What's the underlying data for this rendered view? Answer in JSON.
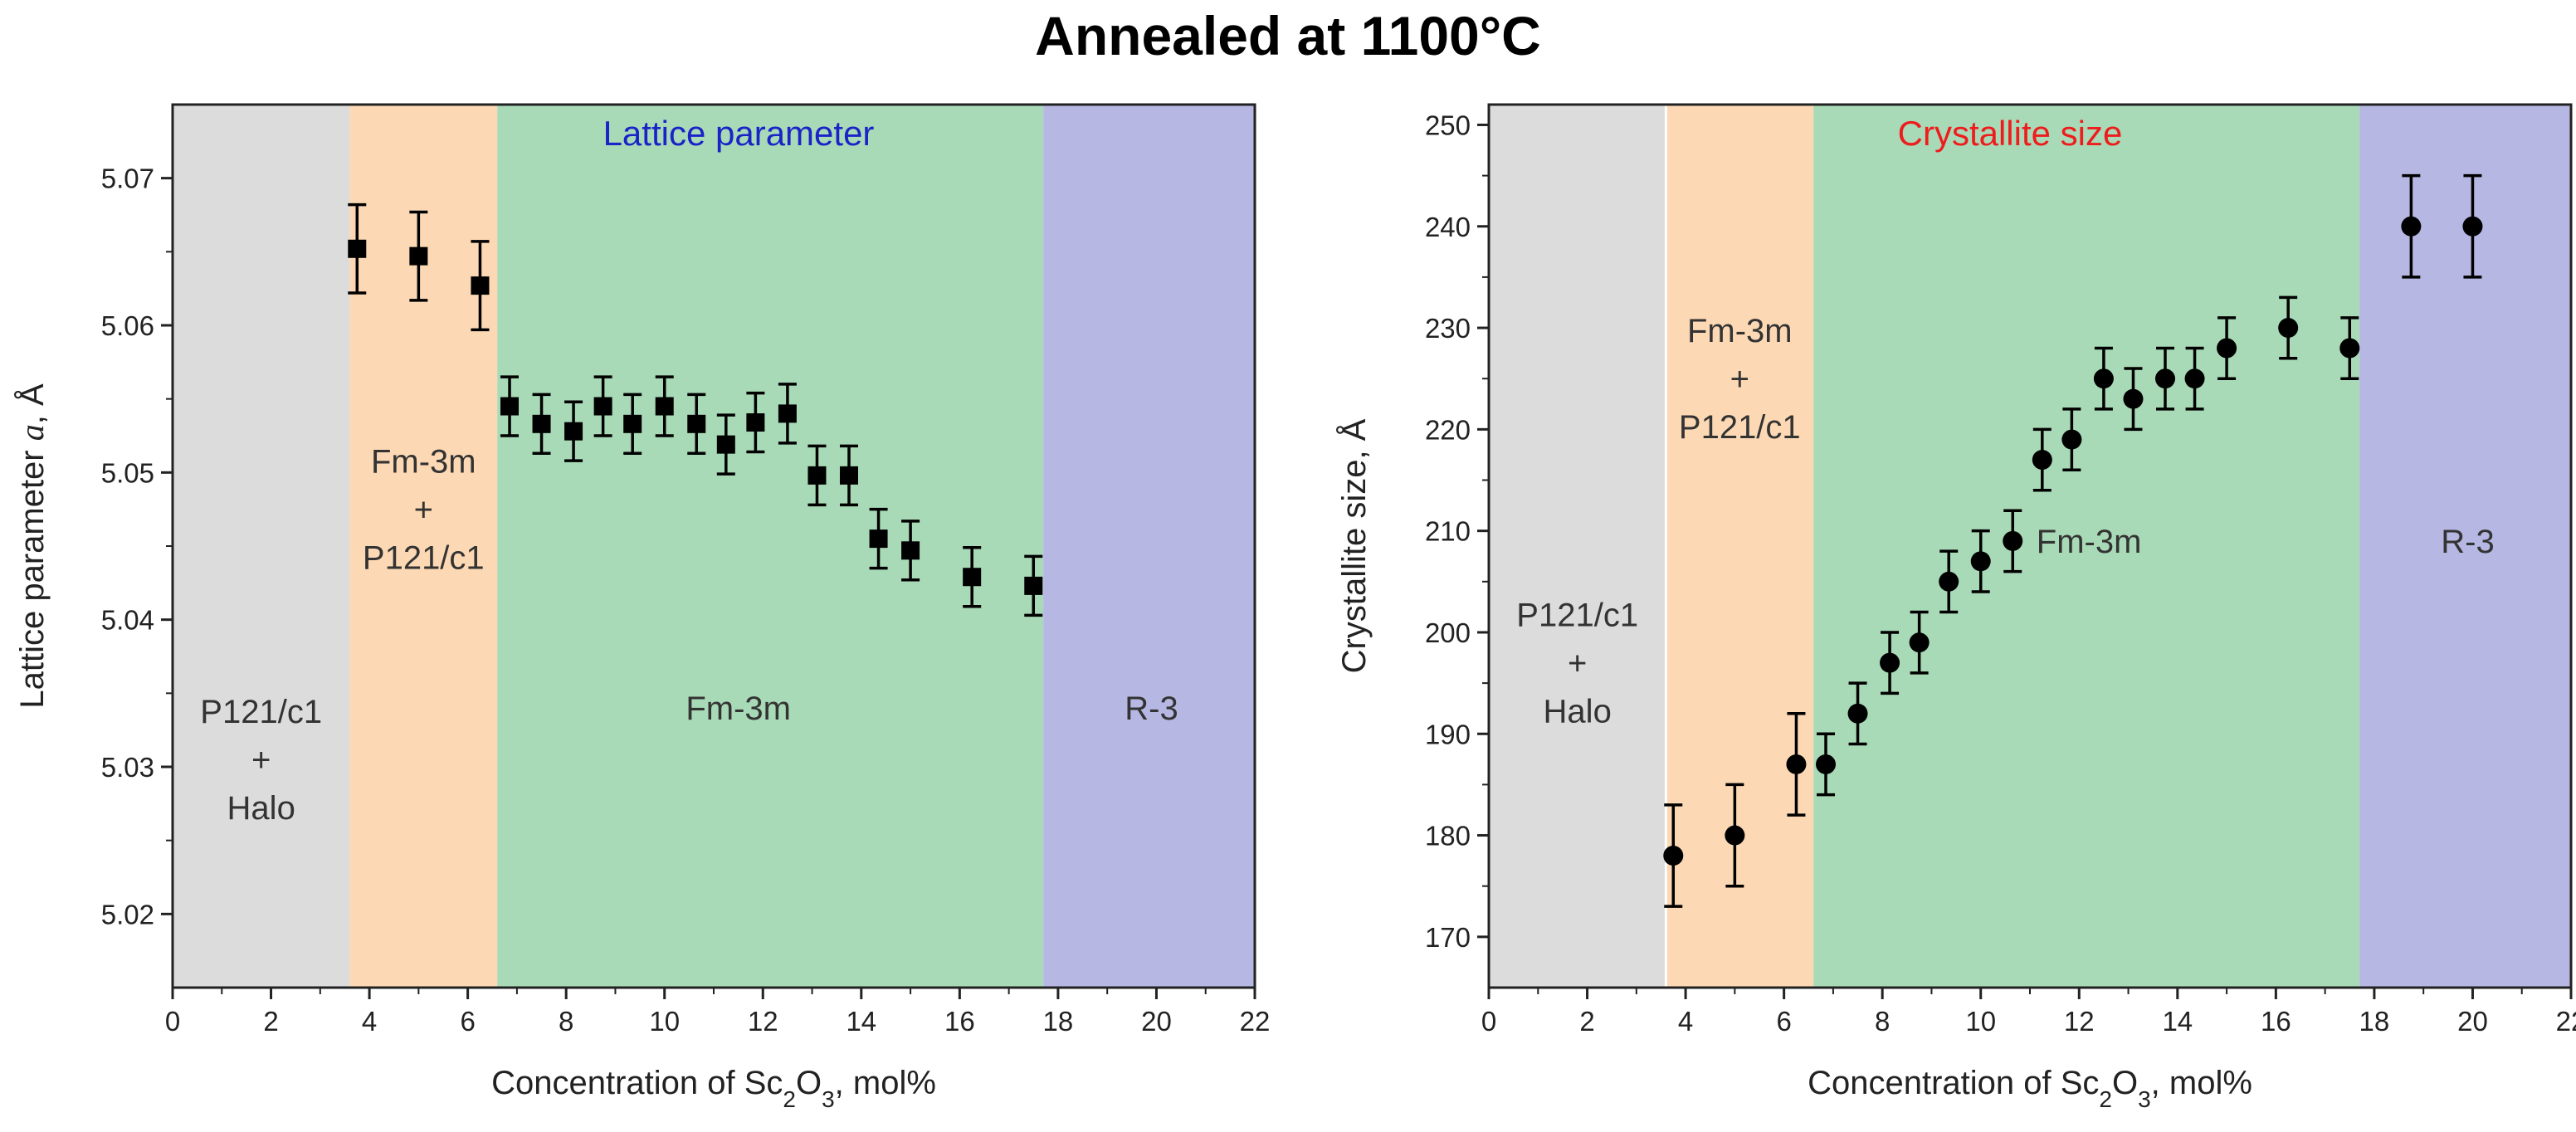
{
  "figure_title": "Annealed at 1100°C",
  "colors": {
    "region_gray": "#dcdcdc",
    "region_orange": "#fcd9b4",
    "region_green": "#a9dab7",
    "region_blue": "#b6b7e3",
    "panel1_title": "#1a23c8",
    "panel2_title": "#ee1c1c",
    "marker": "#000000"
  },
  "chart_data": [
    {
      "type": "scatter",
      "title": "Lattice parameter",
      "xlabel_prefix": "Concentration of Sc",
      "xlabel_sub": "2",
      "xlabel_mid": "O",
      "xlabel_sub2": "3",
      "xlabel_suffix": ", mol%",
      "ylabel_prefix": "Lattice parameter ",
      "ylabel_italic": "a",
      "ylabel_suffix": ", Å",
      "xlim": [
        0,
        22
      ],
      "ylim": [
        5.015,
        5.075
      ],
      "xticks": [
        0,
        2,
        4,
        6,
        8,
        10,
        12,
        14,
        16,
        18,
        20,
        22
      ],
      "xtick_labels": [
        "0",
        "2",
        "4",
        "6",
        "8",
        "10",
        "12",
        "14",
        "16",
        "18",
        "20",
        "22"
      ],
      "yticks": [
        5.02,
        5.03,
        5.04,
        5.05,
        5.06,
        5.07
      ],
      "ytick_labels": [
        "5.02",
        "5.03",
        "5.04",
        "5.05",
        "5.06",
        "5.07"
      ],
      "regions": [
        {
          "from": 0,
          "to": 3.6,
          "color": "region_gray",
          "lines": [
            "P121/c1",
            "+",
            "Halo"
          ],
          "label_x": 1.8,
          "label_y": 5.0305
        },
        {
          "from": 3.6,
          "to": 6.6,
          "color": "region_orange",
          "lines": [
            "Fm-3m",
            "+",
            "P121/c1"
          ],
          "label_x": 5.1,
          "label_y": 5.0475
        },
        {
          "from": 6.6,
          "to": 17.7,
          "color": "region_green",
          "lines": [
            "Fm-3m"
          ],
          "label_x": 11.5,
          "label_y": 5.034
        },
        {
          "from": 17.7,
          "to": 22,
          "color": "region_blue",
          "lines": [
            "R-3"
          ],
          "label_x": 19.9,
          "label_y": 5.034
        }
      ],
      "marker": "square",
      "points": [
        {
          "x": 3.75,
          "y": 5.0652,
          "err": 0.003
        },
        {
          "x": 5.0,
          "y": 5.0647,
          "err": 0.003
        },
        {
          "x": 6.25,
          "y": 5.0627,
          "err": 0.003
        },
        {
          "x": 6.85,
          "y": 5.0545,
          "err": 0.002
        },
        {
          "x": 7.5,
          "y": 5.0533,
          "err": 0.002
        },
        {
          "x": 8.15,
          "y": 5.0528,
          "err": 0.002
        },
        {
          "x": 8.75,
          "y": 5.0545,
          "err": 0.002
        },
        {
          "x": 9.35,
          "y": 5.0533,
          "err": 0.002
        },
        {
          "x": 10.0,
          "y": 5.0545,
          "err": 0.002
        },
        {
          "x": 10.65,
          "y": 5.0533,
          "err": 0.002
        },
        {
          "x": 11.25,
          "y": 5.0519,
          "err": 0.002
        },
        {
          "x": 11.85,
          "y": 5.0534,
          "err": 0.002
        },
        {
          "x": 12.5,
          "y": 5.054,
          "err": 0.002
        },
        {
          "x": 13.1,
          "y": 5.0498,
          "err": 0.002
        },
        {
          "x": 13.75,
          "y": 5.0498,
          "err": 0.002
        },
        {
          "x": 14.35,
          "y": 5.0455,
          "err": 0.002
        },
        {
          "x": 15.0,
          "y": 5.0447,
          "err": 0.002
        },
        {
          "x": 16.25,
          "y": 5.0429,
          "err": 0.002
        },
        {
          "x": 17.5,
          "y": 5.0423,
          "err": 0.002
        }
      ]
    },
    {
      "type": "scatter",
      "title": "Crystallite size",
      "xlabel_prefix": "Concentration of Sc",
      "xlabel_sub": "2",
      "xlabel_mid": "O",
      "xlabel_sub2": "3",
      "xlabel_suffix": ", mol%",
      "ylabel_prefix": "Crystallite size, Å",
      "ylabel_italic": "",
      "ylabel_suffix": "",
      "xlim": [
        0,
        22
      ],
      "ylim": [
        165,
        252
      ],
      "xticks": [
        0,
        2,
        4,
        6,
        8,
        10,
        12,
        14,
        16,
        18,
        20,
        22
      ],
      "xtick_labels": [
        "0",
        "2",
        "4",
        "6",
        "8",
        "10",
        "12",
        "14",
        "16",
        "18",
        "20",
        "22"
      ],
      "yticks": [
        170,
        180,
        190,
        200,
        210,
        220,
        230,
        240,
        250
      ],
      "ytick_labels": [
        "170",
        "180",
        "190",
        "200",
        "210",
        "220",
        "230",
        "240",
        "250"
      ],
      "regions": [
        {
          "from": 0,
          "to": 3.6,
          "color": "region_gray",
          "lines": [
            "P121/c1",
            "+",
            "Halo"
          ],
          "label_x": 1.8,
          "label_y": 197
        },
        {
          "from": 3.6,
          "to": 6.6,
          "color": "region_orange",
          "lines": [
            "Fm-3m",
            "+",
            "P121/c1"
          ],
          "label_x": 5.1,
          "label_y": 225
        },
        {
          "from": 6.6,
          "to": 17.7,
          "color": "region_green",
          "lines": [
            "Fm-3m"
          ],
          "label_x": 12.2,
          "label_y": 209
        },
        {
          "from": 17.7,
          "to": 22,
          "color": "region_blue",
          "lines": [
            "R-3"
          ],
          "label_x": 19.9,
          "label_y": 209
        }
      ],
      "marker": "circle",
      "points": [
        {
          "x": 3.75,
          "y": 178,
          "err": 5
        },
        {
          "x": 5.0,
          "y": 180,
          "err": 5
        },
        {
          "x": 6.25,
          "y": 187,
          "err": 5
        },
        {
          "x": 6.85,
          "y": 187,
          "err": 3
        },
        {
          "x": 7.5,
          "y": 192,
          "err": 3
        },
        {
          "x": 8.15,
          "y": 197,
          "err": 3
        },
        {
          "x": 8.75,
          "y": 199,
          "err": 3
        },
        {
          "x": 9.35,
          "y": 205,
          "err": 3
        },
        {
          "x": 10.0,
          "y": 207,
          "err": 3
        },
        {
          "x": 10.65,
          "y": 209,
          "err": 3
        },
        {
          "x": 11.25,
          "y": 217,
          "err": 3
        },
        {
          "x": 11.85,
          "y": 219,
          "err": 3
        },
        {
          "x": 12.5,
          "y": 225,
          "err": 3
        },
        {
          "x": 13.1,
          "y": 223,
          "err": 3
        },
        {
          "x": 13.75,
          "y": 225,
          "err": 3
        },
        {
          "x": 14.35,
          "y": 225,
          "err": 3
        },
        {
          "x": 15.0,
          "y": 228,
          "err": 3
        },
        {
          "x": 16.25,
          "y": 230,
          "err": 3
        },
        {
          "x": 17.5,
          "y": 228,
          "err": 3
        },
        {
          "x": 18.75,
          "y": 240,
          "err": 5
        },
        {
          "x": 20.0,
          "y": 240,
          "err": 5
        }
      ]
    }
  ]
}
